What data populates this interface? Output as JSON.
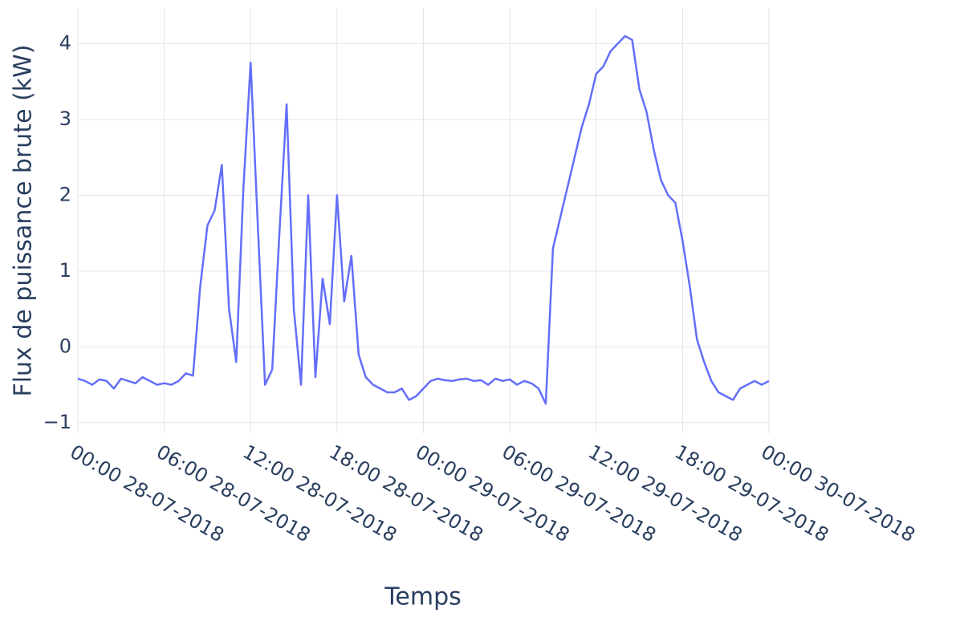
{
  "chart_data": {
    "type": "line",
    "y_label": "Flux de puissance brute (kW)",
    "x_label": "Temps",
    "x": [
      "2018-07-28 00:00",
      "2018-07-28 00:30",
      "2018-07-28 01:00",
      "2018-07-28 01:30",
      "2018-07-28 02:00",
      "2018-07-28 02:30",
      "2018-07-28 03:00",
      "2018-07-28 03:30",
      "2018-07-28 04:00",
      "2018-07-28 04:30",
      "2018-07-28 05:00",
      "2018-07-28 05:30",
      "2018-07-28 06:00",
      "2018-07-28 06:30",
      "2018-07-28 07:00",
      "2018-07-28 07:30",
      "2018-07-28 08:00",
      "2018-07-28 08:30",
      "2018-07-28 09:00",
      "2018-07-28 09:30",
      "2018-07-28 10:00",
      "2018-07-28 10:30",
      "2018-07-28 11:00",
      "2018-07-28 11:30",
      "2018-07-28 12:00",
      "2018-07-28 12:30",
      "2018-07-28 13:00",
      "2018-07-28 13:30",
      "2018-07-28 14:00",
      "2018-07-28 14:30",
      "2018-07-28 15:00",
      "2018-07-28 15:30",
      "2018-07-28 16:00",
      "2018-07-28 16:30",
      "2018-07-28 17:00",
      "2018-07-28 17:30",
      "2018-07-28 18:00",
      "2018-07-28 18:30",
      "2018-07-28 19:00",
      "2018-07-28 19:30",
      "2018-07-28 20:00",
      "2018-07-28 20:30",
      "2018-07-28 21:00",
      "2018-07-28 21:30",
      "2018-07-28 22:00",
      "2018-07-28 22:30",
      "2018-07-28 23:00",
      "2018-07-28 23:30",
      "2018-07-29 00:00",
      "2018-07-29 00:30",
      "2018-07-29 01:00",
      "2018-07-29 01:30",
      "2018-07-29 02:00",
      "2018-07-29 02:30",
      "2018-07-29 03:00",
      "2018-07-29 03:30",
      "2018-07-29 04:00",
      "2018-07-29 04:30",
      "2018-07-29 05:00",
      "2018-07-29 05:30",
      "2018-07-29 06:00",
      "2018-07-29 06:30",
      "2018-07-29 07:00",
      "2018-07-29 07:30",
      "2018-07-29 08:00",
      "2018-07-29 08:30",
      "2018-07-29 09:00",
      "2018-07-29 09:30",
      "2018-07-29 10:00",
      "2018-07-29 10:30",
      "2018-07-29 11:00",
      "2018-07-29 11:30",
      "2018-07-29 12:00",
      "2018-07-29 12:30",
      "2018-07-29 13:00",
      "2018-07-29 13:30",
      "2018-07-29 14:00",
      "2018-07-29 14:30",
      "2018-07-29 15:00",
      "2018-07-29 15:30",
      "2018-07-29 16:00",
      "2018-07-29 16:30",
      "2018-07-29 17:00",
      "2018-07-29 17:30",
      "2018-07-29 18:00",
      "2018-07-29 18:30",
      "2018-07-29 19:00",
      "2018-07-29 19:30",
      "2018-07-29 20:00",
      "2018-07-29 20:30",
      "2018-07-29 21:00",
      "2018-07-29 21:30",
      "2018-07-29 22:00",
      "2018-07-29 22:30",
      "2018-07-29 23:00",
      "2018-07-29 23:30",
      "2018-07-30 00:00"
    ],
    "series": [
      {
        "color": "#636efa",
        "values": [
          -0.42,
          -0.45,
          -0.5,
          -0.43,
          -0.45,
          -0.55,
          -0.42,
          -0.45,
          -0.48,
          -0.4,
          -0.45,
          -0.5,
          -0.48,
          -0.5,
          -0.45,
          -0.35,
          -0.38,
          0.8,
          1.6,
          1.8,
          2.4,
          0.5,
          -0.2,
          2.1,
          3.75,
          1.6,
          -0.5,
          -0.3,
          1.5,
          3.2,
          0.5,
          -0.5,
          2.0,
          -0.4,
          0.9,
          0.3,
          2.0,
          0.6,
          1.2,
          -0.1,
          -0.4,
          -0.5,
          -0.55,
          -0.6,
          -0.6,
          -0.55,
          -0.7,
          -0.65,
          -0.55,
          -0.45,
          -0.42,
          -0.44,
          -0.45,
          -0.43,
          -0.42,
          -0.45,
          -0.44,
          -0.5,
          -0.42,
          -0.45,
          -0.43,
          -0.5,
          -0.45,
          -0.48,
          -0.55,
          -0.75,
          1.3,
          1.7,
          2.1,
          2.5,
          2.9,
          3.2,
          3.6,
          3.7,
          3.9,
          4.0,
          4.1,
          4.05,
          3.4,
          3.1,
          2.6,
          2.2,
          2.0,
          1.9,
          1.4,
          0.8,
          0.1,
          -0.2,
          -0.45,
          -0.6,
          -0.65,
          -0.7,
          -0.55,
          -0.5,
          -0.45,
          -0.5,
          -0.45
        ]
      }
    ],
    "xlim": [
      "2018-07-28 00:00",
      "2018-07-30 00:00"
    ],
    "xticks": [
      {
        "value": "2018-07-28 00:00",
        "label": "00:00 28-07-2018"
      },
      {
        "value": "2018-07-28 06:00",
        "label": "06:00 28-07-2018"
      },
      {
        "value": "2018-07-28 12:00",
        "label": "12:00 28-07-2018"
      },
      {
        "value": "2018-07-28 18:00",
        "label": "18:00 28-07-2018"
      },
      {
        "value": "2018-07-29 00:00",
        "label": "00:00 29-07-2018"
      },
      {
        "value": "2018-07-29 06:00",
        "label": "06:00 29-07-2018"
      },
      {
        "value": "2018-07-29 12:00",
        "label": "12:00 29-07-2018"
      },
      {
        "value": "2018-07-29 18:00",
        "label": "18:00 29-07-2018"
      },
      {
        "value": "2018-07-30 00:00",
        "label": "00:00 30-07-2018"
      }
    ],
    "ylim": [
      -1.14,
      4.47
    ],
    "yticks": [
      {
        "value": -1,
        "label": "−1"
      },
      0,
      1,
      2,
      3,
      4
    ],
    "grid": true
  }
}
